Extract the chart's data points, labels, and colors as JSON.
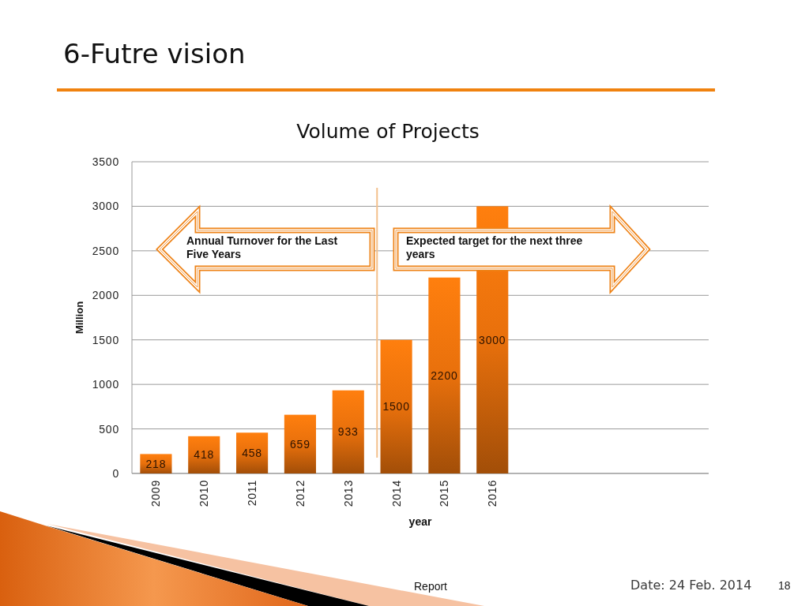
{
  "chart_data": {
    "type": "bar",
    "title": "Volume of Projects",
    "xlabel": "year",
    "ylabel": "Million",
    "x": [
      2009,
      2010,
      2011,
      2012,
      2013,
      2014,
      2015,
      2016
    ],
    "values": [
      218,
      418,
      458,
      659,
      933,
      1500,
      2200,
      3000
    ],
    "color": "#e8700c",
    "xlim": [
      2008.5,
      2020.5
    ],
    "xticks": [
      2009,
      2010,
      2011,
      2012,
      2013,
      2014,
      2015,
      2016
    ],
    "ylim": [
      0,
      3500
    ],
    "yticks": [
      0,
      500,
      1000,
      1500,
      2000,
      2500,
      3000,
      3500
    ],
    "grid": "y",
    "data_labels": true,
    "ref_lines": [
      {
        "axis": "x",
        "value": 2013.6,
        "color": "#f3c08c"
      }
    ],
    "annotations": [
      "6-Futre vision",
      "Annual Turnover for the Last Five Years",
      "Expected target for the next three years",
      "Report",
      "Date: 24 Feb. 2014",
      "18"
    ]
  }
}
